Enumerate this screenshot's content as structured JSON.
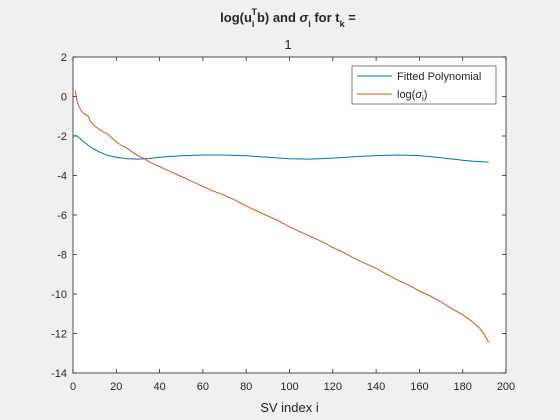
{
  "chart_data": {
    "type": "line",
    "title_main": "log(u",
    "title_sub_i": "i",
    "title_sup_T": "T",
    "title_mid": "b) and ",
    "title_sigma": "σ",
    "title_sub_i2": "i",
    "title_for": " for t",
    "title_sub_k": "k",
    "title_end": " =",
    "title_line2": "1",
    "xlabel": "SV index i",
    "ylabel": "",
    "xlim": [
      0,
      200
    ],
    "ylim": [
      -14,
      2
    ],
    "xticks": [
      "0",
      "20",
      "40",
      "60",
      "80",
      "100",
      "120",
      "140",
      "160",
      "180",
      "200"
    ],
    "yticks": [
      "2",
      "0",
      "-2",
      "-4",
      "-6",
      "-8",
      "-10",
      "-12",
      "-14"
    ],
    "grid": false,
    "legend_position": "top-right",
    "legend": {
      "fitted": "Fitted Polynomial",
      "log_prefix": "log(",
      "sigma": "σ",
      "sub_i": "i",
      "suffix": ")"
    },
    "series": [
      {
        "name": "Fitted Polynomial",
        "color": "#0072BD",
        "x": [
          1,
          3,
          5,
          8,
          12,
          16,
          20,
          25,
          30,
          35,
          40,
          50,
          60,
          70,
          80,
          90,
          100,
          110,
          120,
          130,
          140,
          150,
          160,
          170,
          180,
          185,
          192
        ],
        "y": [
          -1.95,
          -2.1,
          -2.3,
          -2.55,
          -2.8,
          -2.98,
          -3.08,
          -3.15,
          -3.17,
          -3.14,
          -3.08,
          -3.0,
          -2.96,
          -2.96,
          -3.0,
          -3.08,
          -3.15,
          -3.17,
          -3.12,
          -3.05,
          -2.99,
          -2.96,
          -2.99,
          -3.1,
          -3.23,
          -3.28,
          -3.32
        ]
      },
      {
        "name": "log(σi)",
        "color": "#D95319",
        "x": [
          1,
          2,
          3,
          4,
          5,
          7,
          8,
          10,
          12,
          14,
          16,
          18,
          20,
          22,
          24,
          26,
          28,
          30,
          33,
          36,
          40,
          45,
          50,
          55,
          60,
          65,
          70,
          75,
          80,
          85,
          90,
          95,
          100,
          105,
          110,
          115,
          120,
          125,
          130,
          135,
          140,
          145,
          150,
          155,
          160,
          165,
          170,
          175,
          180,
          185,
          188,
          190,
          192
        ],
        "y": [
          0.3,
          -0.3,
          -0.55,
          -0.75,
          -0.85,
          -1.0,
          -1.25,
          -1.5,
          -1.65,
          -1.8,
          -1.9,
          -2.1,
          -2.3,
          -2.45,
          -2.55,
          -2.7,
          -2.85,
          -3.0,
          -3.15,
          -3.35,
          -3.55,
          -3.8,
          -4.05,
          -4.3,
          -4.55,
          -4.8,
          -5.0,
          -5.25,
          -5.55,
          -5.8,
          -6.05,
          -6.3,
          -6.6,
          -6.85,
          -7.1,
          -7.35,
          -7.65,
          -7.9,
          -8.2,
          -8.45,
          -8.7,
          -9.0,
          -9.3,
          -9.55,
          -9.85,
          -10.1,
          -10.4,
          -10.75,
          -11.05,
          -11.45,
          -11.75,
          -12.05,
          -12.45
        ]
      }
    ]
  }
}
